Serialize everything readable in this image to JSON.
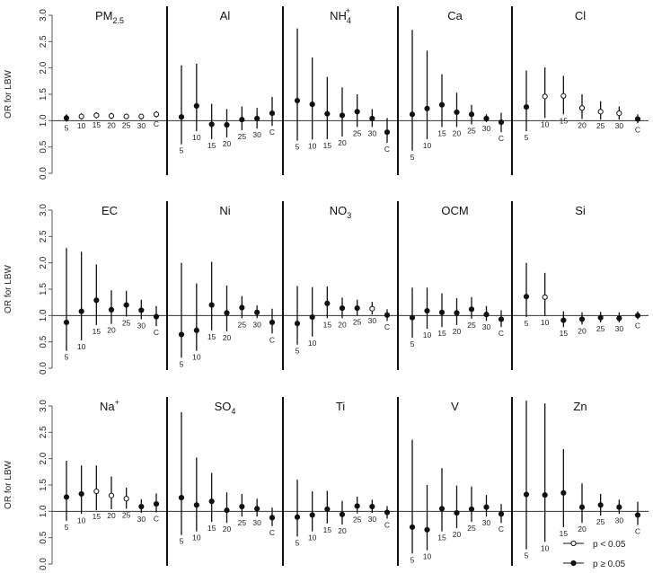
{
  "chart_data": {
    "type": "scatter",
    "plot": "forest",
    "ylabel": "OR for LBW",
    "ylim": [
      0,
      3
    ],
    "yticks": [
      "0.0",
      "0.5",
      "1.0",
      "1.5",
      "2.0",
      "2.5",
      "3.0"
    ],
    "reference_line": 1.0,
    "categories": [
      "5",
      "10",
      "15",
      "20",
      "25",
      "30",
      "C"
    ],
    "legend": {
      "placement": "bottom-right",
      "items": [
        {
          "label": "p < 0.05",
          "marker": "open"
        },
        {
          "label": "p ≥ 0.05",
          "marker": "filled"
        }
      ]
    },
    "panels": [
      {
        "title": "PM",
        "sub": "2.5",
        "sup": "",
        "or": [
          1.05,
          1.08,
          1.1,
          1.09,
          1.08,
          1.08,
          1.12
        ],
        "lo": [
          0.98,
          1.02,
          1.04,
          1.03,
          1.03,
          1.02,
          1.06
        ],
        "hi": [
          1.12,
          1.14,
          1.16,
          1.15,
          1.13,
          1.13,
          1.18
        ],
        "sig": [
          0,
          1,
          1,
          1,
          1,
          1,
          1
        ]
      },
      {
        "title": "Al",
        "sub": "",
        "sup": "",
        "or": [
          1.07,
          1.28,
          0.93,
          0.92,
          1.02,
          1.04,
          1.14
        ],
        "lo": [
          0.55,
          0.8,
          0.65,
          0.68,
          0.82,
          0.85,
          0.9
        ],
        "hi": [
          2.05,
          2.08,
          1.32,
          1.22,
          1.27,
          1.24,
          1.45
        ],
        "sig": [
          0,
          0,
          0,
          0,
          0,
          0,
          0
        ]
      },
      {
        "title": "NH",
        "sub": "4",
        "sup": "+",
        "or": [
          1.38,
          1.31,
          1.13,
          1.1,
          1.17,
          1.04,
          0.78
        ],
        "lo": [
          0.62,
          0.64,
          0.65,
          0.7,
          0.88,
          0.88,
          0.58
        ],
        "hi": [
          2.75,
          2.2,
          1.83,
          1.63,
          1.5,
          1.22,
          1.05
        ],
        "sig": [
          0,
          0,
          0,
          0,
          0,
          0,
          0
        ]
      },
      {
        "title": "Ca",
        "sub": "",
        "sup": "",
        "or": [
          1.12,
          1.23,
          1.3,
          1.16,
          1.12,
          1.04,
          0.97
        ],
        "lo": [
          0.43,
          0.65,
          0.88,
          0.88,
          0.93,
          0.97,
          0.78
        ],
        "hi": [
          2.72,
          2.33,
          1.88,
          1.53,
          1.3,
          1.12,
          1.15
        ],
        "sig": [
          0,
          0,
          0,
          0,
          0,
          0,
          0
        ]
      },
      {
        "title": "Cl",
        "sub": "",
        "sup": "",
        "or": [
          1.26,
          1.46,
          1.47,
          1.24,
          1.17,
          1.14,
          1.03
        ],
        "lo": [
          0.8,
          1.05,
          1.12,
          1.03,
          1.02,
          1.02,
          0.95
        ],
        "hi": [
          1.95,
          2.01,
          1.85,
          1.5,
          1.37,
          1.27,
          1.12
        ],
        "sig": [
          0,
          1,
          1,
          1,
          1,
          1,
          0
        ]
      },
      {
        "title": "EC",
        "sub": "",
        "sup": "",
        "or": [
          0.87,
          1.08,
          1.29,
          1.11,
          1.2,
          1.1,
          0.98
        ],
        "lo": [
          0.33,
          0.53,
          0.82,
          0.84,
          0.98,
          0.93,
          0.8
        ],
        "hi": [
          2.28,
          2.21,
          1.97,
          1.48,
          1.47,
          1.3,
          1.18
        ],
        "sig": [
          0,
          0,
          0,
          0,
          0,
          0,
          0
        ]
      },
      {
        "title": "Ni",
        "sub": "",
        "sup": "",
        "or": [
          0.64,
          0.72,
          1.2,
          1.05,
          1.15,
          1.06,
          0.87
        ],
        "lo": [
          0.2,
          0.33,
          0.72,
          0.7,
          0.95,
          0.95,
          0.66
        ],
        "hi": [
          2.0,
          1.61,
          2.02,
          1.57,
          1.37,
          1.19,
          1.13
        ],
        "sig": [
          0,
          0,
          0,
          0,
          0,
          0,
          0
        ]
      },
      {
        "title": "NO",
        "sub": "3",
        "sup": "",
        "or": [
          0.85,
          0.97,
          1.23,
          1.14,
          1.14,
          1.13,
          1.01
        ],
        "lo": [
          0.45,
          0.6,
          0.95,
          0.95,
          1.0,
          1.02,
          0.9
        ],
        "hi": [
          1.56,
          1.54,
          1.55,
          1.34,
          1.3,
          1.26,
          1.12
        ],
        "sig": [
          0,
          0,
          0,
          0,
          0,
          1,
          0
        ]
      },
      {
        "title": "OCM",
        "sub": "",
        "sup": "",
        "or": [
          0.96,
          1.09,
          1.06,
          1.05,
          1.12,
          1.02,
          0.93
        ],
        "lo": [
          0.58,
          0.75,
          0.78,
          0.82,
          0.94,
          0.9,
          0.78
        ],
        "hi": [
          1.53,
          1.53,
          1.42,
          1.33,
          1.35,
          1.18,
          1.1
        ],
        "sig": [
          0,
          0,
          0,
          0,
          0,
          0,
          0
        ]
      },
      {
        "title": "Si",
        "sub": "",
        "sup": "",
        "or": [
          1.36,
          1.35,
          0.91,
          0.93,
          0.96,
          0.95,
          1.0
        ],
        "lo": [
          0.97,
          0.99,
          0.78,
          0.83,
          0.87,
          0.87,
          0.93
        ],
        "hi": [
          2.0,
          1.81,
          1.08,
          1.06,
          1.07,
          1.06,
          1.08
        ],
        "sig": [
          0,
          1,
          0,
          0,
          0,
          0,
          0
        ]
      },
      {
        "title": "Na",
        "sub": "",
        "sup": "+",
        "or": [
          1.27,
          1.33,
          1.38,
          1.3,
          1.24,
          1.09,
          1.14
        ],
        "lo": [
          0.82,
          0.95,
          1.02,
          1.04,
          1.05,
          0.97,
          0.98
        ],
        "hi": [
          1.96,
          1.87,
          1.87,
          1.66,
          1.45,
          1.23,
          1.34
        ],
        "sig": [
          0,
          0,
          1,
          1,
          1,
          0,
          0
        ]
      },
      {
        "title": "SO",
        "sub": "4",
        "sup": "",
        "or": [
          1.26,
          1.12,
          1.19,
          1.02,
          1.09,
          1.05,
          0.88
        ],
        "lo": [
          0.55,
          0.62,
          0.8,
          0.78,
          0.9,
          0.9,
          0.72
        ],
        "hi": [
          2.88,
          2.02,
          1.73,
          1.36,
          1.33,
          1.24,
          1.07
        ],
        "sig": [
          0,
          0,
          0,
          0,
          0,
          0,
          0
        ]
      },
      {
        "title": "Ti",
        "sub": "",
        "sup": "",
        "or": [
          0.89,
          0.93,
          1.04,
          0.94,
          1.1,
          1.09,
          0.98
        ],
        "lo": [
          0.52,
          0.62,
          0.77,
          0.75,
          0.96,
          0.97,
          0.86
        ],
        "hi": [
          1.6,
          1.38,
          1.39,
          1.2,
          1.28,
          1.22,
          1.1
        ],
        "sig": [
          0,
          0,
          0,
          0,
          0,
          0,
          0
        ]
      },
      {
        "title": "V",
        "sub": "",
        "sup": "",
        "or": [
          0.7,
          0.65,
          1.05,
          0.97,
          1.04,
          1.08,
          0.95
        ],
        "lo": [
          0.2,
          0.26,
          0.62,
          0.68,
          0.8,
          0.9,
          0.78
        ],
        "hi": [
          2.36,
          1.5,
          1.82,
          1.49,
          1.47,
          1.31,
          1.14
        ],
        "sig": [
          0,
          0,
          0,
          0,
          0,
          0,
          0
        ]
      },
      {
        "title": "Zn",
        "sub": "",
        "sup": "",
        "or": [
          1.32,
          1.31,
          1.35,
          1.08,
          1.12,
          1.08,
          0.93
        ],
        "lo": [
          0.28,
          0.42,
          0.7,
          0.78,
          0.92,
          0.95,
          0.74
        ],
        "hi": [
          3.1,
          3.05,
          2.18,
          1.53,
          1.33,
          1.22,
          1.18
        ],
        "sig": [
          0,
          0,
          0,
          0,
          0,
          0,
          0
        ]
      }
    ]
  }
}
